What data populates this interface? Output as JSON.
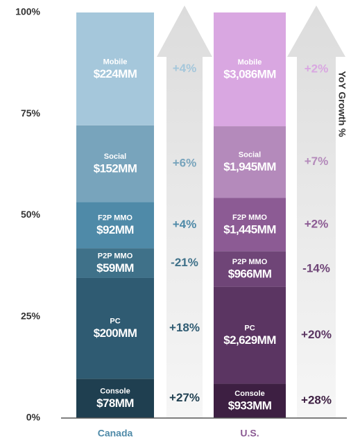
{
  "chart_data": {
    "type": "bar",
    "stacked": "percent",
    "categories": [
      "Canada",
      "U.S."
    ],
    "ylim": [
      0,
      100
    ],
    "yticks": [
      {
        "value": 0,
        "label": "0%"
      },
      {
        "value": 25,
        "label": "25%"
      },
      {
        "value": 50,
        "label": "50%"
      },
      {
        "value": 75,
        "label": "75%"
      },
      {
        "value": 100,
        "label": "100%"
      }
    ],
    "growth_title": "YoY Growth %",
    "series": [
      {
        "name": "Console",
        "values": [
          78,
          933
        ],
        "value_labels": [
          "$78MM",
          "$933MM"
        ],
        "colors": [
          "#1f3f50",
          "#3d1f42"
        ],
        "growth": [
          27,
          28
        ],
        "growth_labels": [
          "+27%",
          "+28%"
        ]
      },
      {
        "name": "PC",
        "values": [
          200,
          2629
        ],
        "value_labels": [
          "$200MM",
          "$2,629MM"
        ],
        "colors": [
          "#2f5b72",
          "#5b3562"
        ],
        "growth": [
          18,
          20
        ],
        "growth_labels": [
          "+18%",
          "+20%"
        ]
      },
      {
        "name": "P2P MMO",
        "values": [
          59,
          966
        ],
        "value_labels": [
          "$59MM",
          "$966MM"
        ],
        "colors": [
          "#3f7189",
          "#6f4577"
        ],
        "growth": [
          -21,
          -14
        ],
        "growth_labels": [
          "-21%",
          "-14%"
        ]
      },
      {
        "name": "F2P MMO",
        "values": [
          92,
          1445
        ],
        "value_labels": [
          "$92MM",
          "$1,445MM"
        ],
        "colors": [
          "#4f8aa8",
          "#8c5b94"
        ],
        "growth": [
          4,
          2
        ],
        "growth_labels": [
          "+4%",
          "+2%"
        ]
      },
      {
        "name": "Social",
        "values": [
          152,
          1945
        ],
        "value_labels": [
          "$152MM",
          "$1,945MM"
        ],
        "colors": [
          "#78a4bc",
          "#b48abb"
        ],
        "growth": [
          6,
          7
        ],
        "growth_labels": [
          "+6%",
          "+7%"
        ]
      },
      {
        "name": "Mobile",
        "values": [
          224,
          3086
        ],
        "value_labels": [
          "$224MM",
          "$3,086MM"
        ],
        "colors": [
          "#a5c7db",
          "#d9a7e1"
        ],
        "growth": [
          4,
          2
        ],
        "growth_labels": [
          "+4%",
          "+2%"
        ]
      }
    ]
  }
}
